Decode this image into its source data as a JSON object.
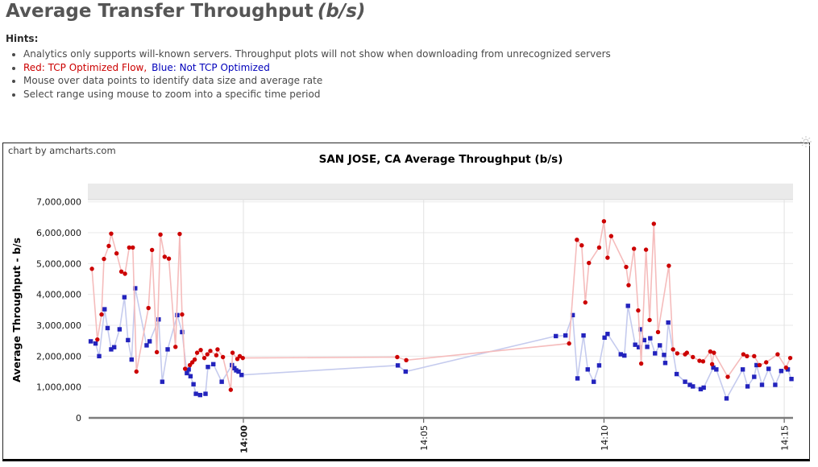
{
  "header": {
    "title": "Average Transfer Throughput",
    "title_unit": "(b/s)",
    "hints_label": "Hints:",
    "hint_servers": "Analytics only supports will-known servers. Throughput plots will not show when downloading from unrecognized servers",
    "hint_red": "Red: TCP Optimized Flow,",
    "hint_blue": "Blue: Not TCP Optimized",
    "hint_mouse": "Mouse over data points to identify data size and average rate",
    "hint_select": "Select range using mouse to zoom into a specific time period",
    "colors": {
      "red_text": "#cc0000",
      "blue_text": "#0000bb"
    }
  },
  "chart": {
    "branding": "chart by amcharts.com",
    "title": "SAN JOSE, CA Average Throughput (b/s)",
    "y_axis_title": "Average Throughput - b/s"
  },
  "chart_data": {
    "type": "line",
    "title": "SAN JOSE, CA Average Throughput (b/s)",
    "xlabel": "",
    "ylabel": "Average Throughput - b/s",
    "x_ticks": [
      {
        "label": "14:00",
        "time": "14:00:00",
        "bold": true
      },
      {
        "label": "14:05",
        "time": "14:05:00",
        "bold": false
      },
      {
        "label": "14:10",
        "time": "14:10:00",
        "bold": false
      },
      {
        "label": "14:15",
        "time": "14:15:00",
        "bold": false
      }
    ],
    "y_ticks": [
      "0",
      "1,000,000",
      "2,000,000",
      "3,000,000",
      "4,000,000",
      "5,000,000",
      "6,000,000",
      "7,000,000"
    ],
    "ylim": [
      0,
      7000000
    ],
    "x_range": [
      "13:55:38",
      "14:15:16"
    ],
    "grid": true,
    "legend_position": "none",
    "scrollbar_top": true,
    "units": "b/s",
    "series": [
      {
        "id": "red",
        "name": "TCP Optimized Flow",
        "marker": "circle",
        "color": "#cc0000",
        "line_color": "#f5bcbc",
        "points": [
          [
            "13:55:48",
            4830000
          ],
          [
            "13:55:57",
            2540000
          ],
          [
            "13:56:04",
            3350000
          ],
          [
            "13:56:08",
            5150000
          ],
          [
            "13:56:16",
            5570000
          ],
          [
            "13:56:20",
            5970000
          ],
          [
            "13:56:29",
            5330000
          ],
          [
            "13:56:37",
            4740000
          ],
          [
            "13:56:43",
            4670000
          ],
          [
            "13:56:50",
            5520000
          ],
          [
            "13:56:56",
            5520000
          ],
          [
            "13:57:02",
            1500000
          ],
          [
            "13:57:22",
            3560000
          ],
          [
            "13:57:28",
            5440000
          ],
          [
            "13:57:36",
            2130000
          ],
          [
            "13:57:42",
            5940000
          ],
          [
            "13:57:49",
            5220000
          ],
          [
            "13:57:56",
            5160000
          ],
          [
            "13:58:07",
            2300000
          ],
          [
            "13:58:14",
            5960000
          ],
          [
            "13:58:18",
            3350000
          ],
          [
            "13:58:23",
            1590000
          ],
          [
            "13:58:31",
            1710000
          ],
          [
            "13:58:35",
            1800000
          ],
          [
            "13:58:39",
            1890000
          ],
          [
            "13:58:43",
            2110000
          ],
          [
            "13:58:49",
            2200000
          ],
          [
            "13:58:55",
            1940000
          ],
          [
            "13:59:00",
            2060000
          ],
          [
            "13:59:05",
            2170000
          ],
          [
            "13:59:15",
            2030000
          ],
          [
            "13:59:17",
            2220000
          ],
          [
            "13:59:26",
            1970000
          ],
          [
            "13:59:39",
            910000
          ],
          [
            "13:59:42",
            2110000
          ],
          [
            "13:59:50",
            1910000
          ],
          [
            "13:59:54",
            2000000
          ],
          [
            "13:59:59",
            1940000
          ],
          [
            "14:04:16",
            1970000
          ],
          [
            "14:04:31",
            1870000
          ],
          [
            "14:09:02",
            2410000
          ],
          [
            "14:09:15",
            5770000
          ],
          [
            "14:09:23",
            5590000
          ],
          [
            "14:09:29",
            3740000
          ],
          [
            "14:09:35",
            5020000
          ],
          [
            "14:09:52",
            5520000
          ],
          [
            "14:10:00",
            6370000
          ],
          [
            "14:10:06",
            5190000
          ],
          [
            "14:10:12",
            5890000
          ],
          [
            "14:10:37",
            4890000
          ],
          [
            "14:10:41",
            4300000
          ],
          [
            "14:10:50",
            5480000
          ],
          [
            "14:10:57",
            3480000
          ],
          [
            "14:11:02",
            1760000
          ],
          [
            "14:11:10",
            5450000
          ],
          [
            "14:11:16",
            3170000
          ],
          [
            "14:11:23",
            6290000
          ],
          [
            "14:11:30",
            2780000
          ],
          [
            "14:11:48",
            4930000
          ],
          [
            "14:11:55",
            2220000
          ],
          [
            "14:12:02",
            2090000
          ],
          [
            "14:12:15",
            2060000
          ],
          [
            "14:12:18",
            2110000
          ],
          [
            "14:12:28",
            1970000
          ],
          [
            "14:12:39",
            1850000
          ],
          [
            "14:12:45",
            1830000
          ],
          [
            "14:12:57",
            2150000
          ],
          [
            "14:13:00",
            1740000
          ],
          [
            "14:13:03",
            2110000
          ],
          [
            "14:13:26",
            1330000
          ],
          [
            "14:13:52",
            2060000
          ],
          [
            "14:13:58",
            2000000
          ],
          [
            "14:14:10",
            2000000
          ],
          [
            "14:14:19",
            1710000
          ],
          [
            "14:14:30",
            1800000
          ],
          [
            "14:14:49",
            2060000
          ],
          [
            "14:15:03",
            1630000
          ],
          [
            "14:15:10",
            1940000
          ]
        ]
      },
      {
        "id": "blue",
        "name": "Not TCP Optimized",
        "marker": "square",
        "color": "#2323bd",
        "line_color": "#c5cbee",
        "points": [
          [
            "13:55:46",
            2480000
          ],
          [
            "13:55:54",
            2410000
          ],
          [
            "13:56:00",
            2000000
          ],
          [
            "13:56:09",
            3520000
          ],
          [
            "13:56:14",
            2910000
          ],
          [
            "13:56:20",
            2220000
          ],
          [
            "13:56:25",
            2290000
          ],
          [
            "13:56:34",
            2870000
          ],
          [
            "13:56:42",
            3910000
          ],
          [
            "13:56:48",
            2520000
          ],
          [
            "13:56:54",
            1890000
          ],
          [
            "13:57:00",
            4200000
          ],
          [
            "13:57:19",
            2350000
          ],
          [
            "13:57:24",
            2480000
          ],
          [
            "13:57:39",
            3190000
          ],
          [
            "13:57:45",
            1170000
          ],
          [
            "13:57:54",
            2220000
          ],
          [
            "13:58:10",
            3330000
          ],
          [
            "13:58:18",
            2780000
          ],
          [
            "13:58:26",
            1450000
          ],
          [
            "13:58:29",
            1570000
          ],
          [
            "13:58:32",
            1350000
          ],
          [
            "13:58:37",
            1090000
          ],
          [
            "13:58:41",
            780000
          ],
          [
            "13:58:48",
            740000
          ],
          [
            "13:58:57",
            780000
          ],
          [
            "13:59:01",
            1650000
          ],
          [
            "13:59:10",
            1740000
          ],
          [
            "13:59:24",
            1170000
          ],
          [
            "13:59:41",
            1710000
          ],
          [
            "13:59:45",
            1610000
          ],
          [
            "13:59:48",
            1540000
          ],
          [
            "13:59:52",
            1500000
          ],
          [
            "13:59:57",
            1390000
          ],
          [
            "14:04:17",
            1700000
          ],
          [
            "14:04:30",
            1500000
          ],
          [
            "14:08:40",
            2650000
          ],
          [
            "14:08:56",
            2670000
          ],
          [
            "14:09:08",
            3330000
          ],
          [
            "14:09:16",
            1280000
          ],
          [
            "14:09:26",
            2670000
          ],
          [
            "14:09:33",
            1570000
          ],
          [
            "14:09:43",
            1170000
          ],
          [
            "14:09:52",
            1700000
          ],
          [
            "14:10:01",
            2600000
          ],
          [
            "14:10:06",
            2720000
          ],
          [
            "14:10:28",
            2060000
          ],
          [
            "14:10:34",
            2020000
          ],
          [
            "14:10:40",
            3630000
          ],
          [
            "14:10:52",
            2370000
          ],
          [
            "14:10:58",
            2290000
          ],
          [
            "14:11:01",
            2870000
          ],
          [
            "14:11:07",
            2520000
          ],
          [
            "14:11:12",
            2300000
          ],
          [
            "14:11:17",
            2580000
          ],
          [
            "14:11:25",
            2090000
          ],
          [
            "14:11:33",
            2350000
          ],
          [
            "14:11:40",
            2040000
          ],
          [
            "14:11:42",
            1780000
          ],
          [
            "14:11:47",
            3090000
          ],
          [
            "14:12:01",
            1420000
          ],
          [
            "14:12:15",
            1170000
          ],
          [
            "14:12:23",
            1070000
          ],
          [
            "14:12:28",
            1020000
          ],
          [
            "14:12:41",
            930000
          ],
          [
            "14:12:46",
            980000
          ],
          [
            "14:13:02",
            1630000
          ],
          [
            "14:13:07",
            1570000
          ],
          [
            "14:13:24",
            630000
          ],
          [
            "14:13:51",
            1570000
          ],
          [
            "14:13:59",
            1020000
          ],
          [
            "14:14:10",
            1330000
          ],
          [
            "14:14:14",
            1710000
          ],
          [
            "14:14:23",
            1070000
          ],
          [
            "14:14:34",
            1590000
          ],
          [
            "14:14:45",
            1070000
          ],
          [
            "14:14:55",
            1520000
          ],
          [
            "14:15:06",
            1570000
          ],
          [
            "14:15:12",
            1260000
          ]
        ]
      }
    ]
  }
}
